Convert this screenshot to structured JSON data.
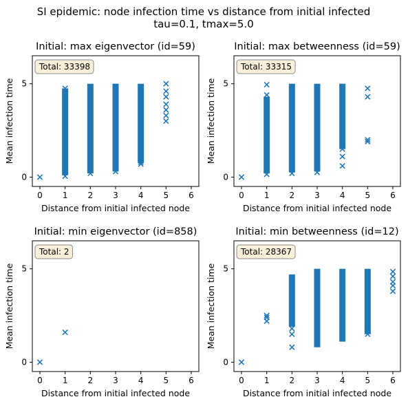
{
  "figure": {
    "title": "SI epidemic: node infection time vs distance from initial infected",
    "subtitle": "tau=0.1, tmax=5.0",
    "series_color": "#1f77b4",
    "box_fill": "#fbefd9",
    "box_stroke": "#8a8a8a"
  },
  "chart_data": [
    {
      "type": "scatter",
      "title": "Initial: max eigenvector (id=59)",
      "xlabel": "Distance from initial infected node",
      "ylabel": "Mean infection time",
      "xlim": [
        -0.3,
        6.3
      ],
      "ylim": [
        -0.5,
        6.5
      ],
      "xticks": [
        0,
        1,
        2,
        3,
        4,
        5,
        6
      ],
      "yticks": [
        0,
        5
      ],
      "annotation": "Total: 33398",
      "marker": "x",
      "bands": [
        {
          "x": 1,
          "ymin": 0.1,
          "ymax": 4.75
        },
        {
          "x": 2,
          "ymin": 0.2,
          "ymax": 5.0
        },
        {
          "x": 3,
          "ymin": 0.3,
          "ymax": 5.0
        },
        {
          "x": 4,
          "ymin": 0.75,
          "ymax": 5.0
        }
      ],
      "points": [
        [
          0,
          0.0
        ],
        [
          1,
          0.05
        ],
        [
          1,
          4.75
        ],
        [
          2,
          0.2
        ],
        [
          3,
          0.3
        ],
        [
          4,
          0.7
        ],
        [
          4,
          0.8
        ],
        [
          5,
          5.0
        ],
        [
          5,
          4.6
        ],
        [
          5,
          4.3
        ],
        [
          5,
          3.9
        ],
        [
          5,
          3.6
        ],
        [
          5,
          3.3
        ],
        [
          5,
          3.0
        ]
      ]
    },
    {
      "type": "scatter",
      "title": "Initial: max betweenness (id=59)",
      "xlabel": "Distance from initial infected node",
      "ylabel": "Mean infection time",
      "xlim": [
        -0.3,
        6.3
      ],
      "ylim": [
        -0.5,
        6.5
      ],
      "xticks": [
        0,
        1,
        2,
        3,
        4,
        5,
        6
      ],
      "yticks": [
        0,
        5
      ],
      "annotation": "Total: 33315",
      "marker": "x",
      "bands": [
        {
          "x": 1,
          "ymin": 0.2,
          "ymax": 4.3
        },
        {
          "x": 2,
          "ymin": 0.25,
          "ymax": 5.0
        },
        {
          "x": 3,
          "ymin": 0.3,
          "ymax": 5.0
        },
        {
          "x": 4,
          "ymin": 1.5,
          "ymax": 5.0
        }
      ],
      "points": [
        [
          0,
          0.0
        ],
        [
          1,
          4.95
        ],
        [
          1,
          4.4
        ],
        [
          1,
          0.15
        ],
        [
          2,
          0.2
        ],
        [
          3,
          0.25
        ],
        [
          4,
          1.5
        ],
        [
          4,
          1.1
        ],
        [
          4,
          0.6
        ],
        [
          5,
          4.75
        ],
        [
          5,
          4.3
        ],
        [
          5,
          2.0
        ],
        [
          5,
          1.9
        ]
      ]
    },
    {
      "type": "scatter",
      "title": "Initial: min eigenvector (id=858)",
      "xlabel": "Distance from initial infected node",
      "ylabel": "Mean infection time",
      "xlim": [
        -0.3,
        6.3
      ],
      "ylim": [
        -0.5,
        6.5
      ],
      "xticks": [
        0,
        1,
        2,
        3,
        4,
        5,
        6
      ],
      "yticks": [
        0,
        5
      ],
      "annotation": "Total: 2",
      "marker": "x",
      "bands": [],
      "points": [
        [
          0,
          0.0
        ],
        [
          1,
          1.6
        ]
      ]
    },
    {
      "type": "scatter",
      "title": "Initial: min betweenness (id=12)",
      "xlabel": "Distance from initial infected node",
      "ylabel": "Mean infection time",
      "xlim": [
        -0.3,
        6.3
      ],
      "ylim": [
        -0.5,
        6.5
      ],
      "xticks": [
        0,
        1,
        2,
        3,
        4,
        5,
        6
      ],
      "yticks": [
        0,
        5
      ],
      "annotation": "Total: 28367",
      "marker": "x",
      "bands": [
        {
          "x": 2,
          "ymin": 1.9,
          "ymax": 4.7
        },
        {
          "x": 3,
          "ymin": 0.8,
          "ymax": 5.0
        },
        {
          "x": 4,
          "ymin": 1.1,
          "ymax": 5.0
        },
        {
          "x": 5,
          "ymin": 1.5,
          "ymax": 5.0
        }
      ],
      "points": [
        [
          0,
          0.0
        ],
        [
          1,
          2.5
        ],
        [
          1,
          2.4
        ],
        [
          1,
          2.2
        ],
        [
          2,
          0.8
        ],
        [
          2,
          1.5
        ],
        [
          2,
          1.8
        ],
        [
          5,
          1.5
        ],
        [
          5,
          1.7
        ],
        [
          6,
          4.85
        ],
        [
          6,
          4.6
        ],
        [
          6,
          4.3
        ],
        [
          6,
          4.1
        ],
        [
          6,
          3.8
        ]
      ]
    }
  ]
}
